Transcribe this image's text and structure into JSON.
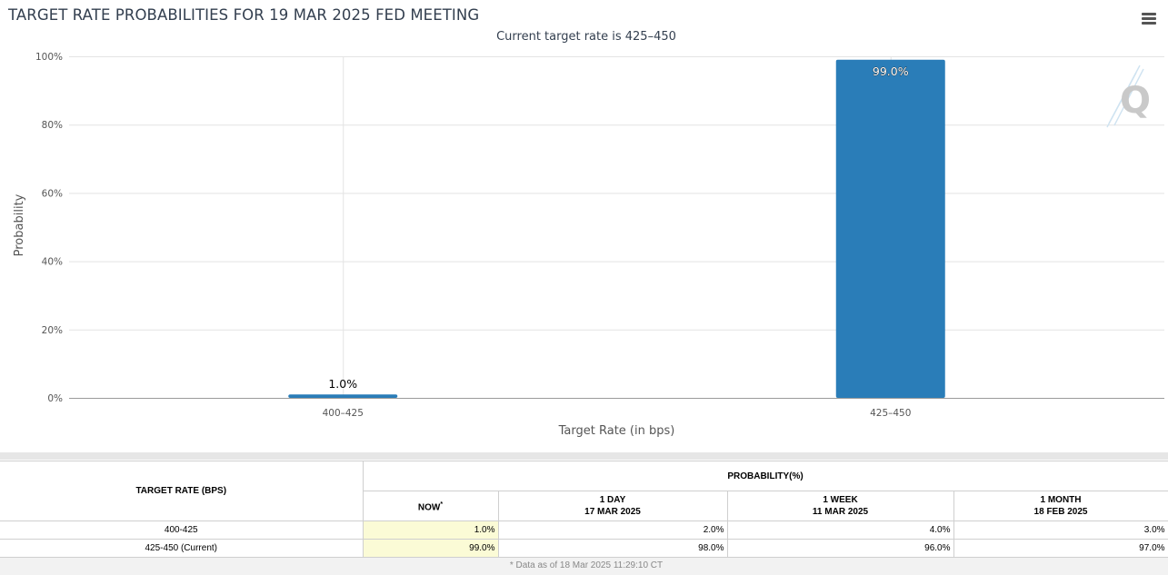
{
  "header": {
    "title": "TARGET RATE PROBABILITIES FOR 19 MAR 2025 FED MEETING",
    "subtitle": "Current target rate is 425–450",
    "menu_icon": "hamburger-menu-icon",
    "watermark_icon": "quikstrike-q-logo-icon"
  },
  "chart_data": {
    "type": "bar",
    "title": "TARGET RATE PROBABILITIES FOR 19 MAR 2025 FED MEETING",
    "subtitle": "Current target rate is 425–450",
    "categories": [
      "400–425",
      "425–450"
    ],
    "values": [
      1.0,
      99.0
    ],
    "data_labels": [
      "1.0%",
      "99.0%"
    ],
    "xlabel": "Target Rate (in bps)",
    "ylabel": "Probability",
    "ylim": [
      0,
      100
    ],
    "yticks": [
      0,
      20,
      40,
      60,
      80,
      100
    ],
    "ytick_labels": [
      "0%",
      "20%",
      "40%",
      "60%",
      "80%",
      "100%"
    ],
    "grid": true,
    "bar_color": "#2a7db8"
  },
  "table": {
    "rate_header": "TARGET RATE (BPS)",
    "prob_header": "PROBABILITY(%)",
    "columns": [
      {
        "line1": "NOW",
        "line2": "",
        "marker": "*"
      },
      {
        "line1": "1 DAY",
        "line2": "17 MAR 2025",
        "marker": ""
      },
      {
        "line1": "1 WEEK",
        "line2": "11 MAR 2025",
        "marker": ""
      },
      {
        "line1": "1 MONTH",
        "line2": "18 FEB 2025",
        "marker": ""
      }
    ],
    "rows": [
      {
        "rate": "400-425",
        "values": [
          "1.0%",
          "2.0%",
          "4.0%",
          "3.0%"
        ]
      },
      {
        "rate": "425-450 (Current)",
        "values": [
          "99.0%",
          "98.0%",
          "96.0%",
          "97.0%"
        ]
      }
    ],
    "highlight_color": "#fbfbd6"
  },
  "footnote": "* Data as of 18 Mar 2025 11:29:10 CT"
}
